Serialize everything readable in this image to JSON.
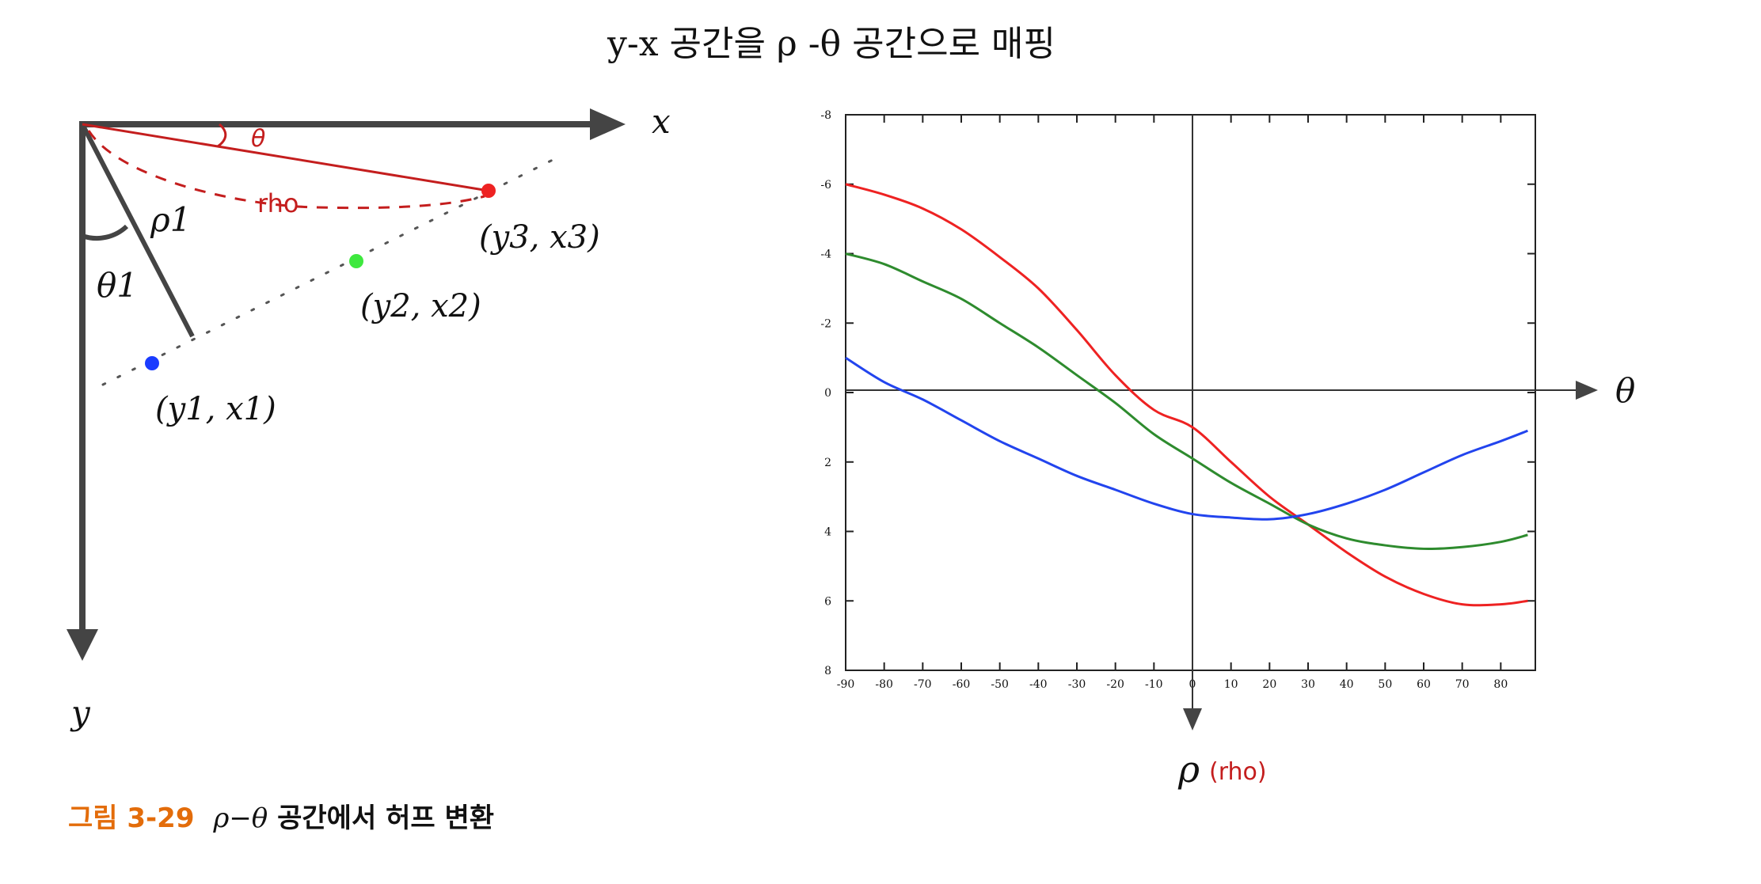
{
  "header": {
    "title": "y-x 공간을 ρ -θ 공간으로 매핑"
  },
  "left_diagram": {
    "axis_x_label": "x",
    "axis_y_label": "y",
    "rho1_label": "ρ1",
    "theta1_label": "θ1",
    "theta_annotation": "θ",
    "rho_annotation": "rho",
    "points": [
      {
        "label": "(y1, x1)",
        "color": "#1a3cff"
      },
      {
        "label": "(y2, x2)",
        "color": "#3ee83e"
      },
      {
        "label": "(y3, x3)",
        "color": "#ee2222"
      }
    ]
  },
  "chart_data": {
    "type": "line",
    "x_axis_label": "θ",
    "y_axis_label": "ρ",
    "y_axis_annotation": "(rho)",
    "xlim": [
      -90,
      87
    ],
    "ylim": [
      -8,
      8
    ],
    "y_inverted": true,
    "x_ticks": [
      -90,
      -80,
      -70,
      -60,
      -50,
      -40,
      -30,
      -20,
      -10,
      0,
      10,
      20,
      30,
      40,
      50,
      60,
      70,
      80
    ],
    "x_tick_labels": [
      "-90",
      "-80",
      "-70",
      "-60",
      "-50",
      "-40",
      "-30",
      "-20",
      "-10",
      "0",
      "10",
      "20",
      "30",
      "40",
      "50",
      "60",
      "70",
      "80"
    ],
    "y_ticks": [
      -8,
      -6,
      -4,
      -2,
      0,
      2,
      4,
      6,
      8
    ],
    "y_tick_labels": [
      "-8",
      "-6",
      "-4",
      "-2",
      "0",
      "2",
      "4",
      "6",
      "8"
    ],
    "series": [
      {
        "color": "#ee2222",
        "x": [
          -90,
          -80,
          -70,
          -60,
          -50,
          -40,
          -30,
          -20,
          -10,
          0,
          10,
          20,
          30,
          40,
          50,
          60,
          70,
          80,
          87
        ],
        "y": [
          -6.0,
          -5.7,
          -5.3,
          -4.7,
          -3.9,
          -3.0,
          -1.8,
          -0.5,
          0.5,
          1.0,
          2.0,
          3.0,
          3.8,
          4.6,
          5.3,
          5.8,
          6.1,
          6.1,
          6.0
        ]
      },
      {
        "color": "#2e8b2e",
        "x": [
          -90,
          -80,
          -70,
          -60,
          -50,
          -40,
          -30,
          -20,
          -10,
          0,
          10,
          20,
          30,
          40,
          50,
          60,
          70,
          80,
          87
        ],
        "y": [
          -4.0,
          -3.7,
          -3.2,
          -2.7,
          -2.0,
          -1.3,
          -0.5,
          0.3,
          1.2,
          1.9,
          2.6,
          3.2,
          3.8,
          4.2,
          4.4,
          4.5,
          4.45,
          4.3,
          4.1
        ]
      },
      {
        "color": "#2244ee",
        "x": [
          -90,
          -80,
          -70,
          -60,
          -50,
          -40,
          -30,
          -20,
          -10,
          0,
          10,
          20,
          30,
          40,
          50,
          60,
          70,
          80,
          87
        ],
        "y": [
          -1.0,
          -0.3,
          0.2,
          0.8,
          1.4,
          1.9,
          2.4,
          2.8,
          3.2,
          3.5,
          3.6,
          3.65,
          3.5,
          3.2,
          2.8,
          2.3,
          1.8,
          1.4,
          1.1
        ]
      }
    ]
  },
  "caption": {
    "number": "그림 3-29",
    "text_prefix": "ρ−θ",
    "text_suffix": " 공간에서 허프 변환",
    "number_color": "#e36c0a"
  }
}
